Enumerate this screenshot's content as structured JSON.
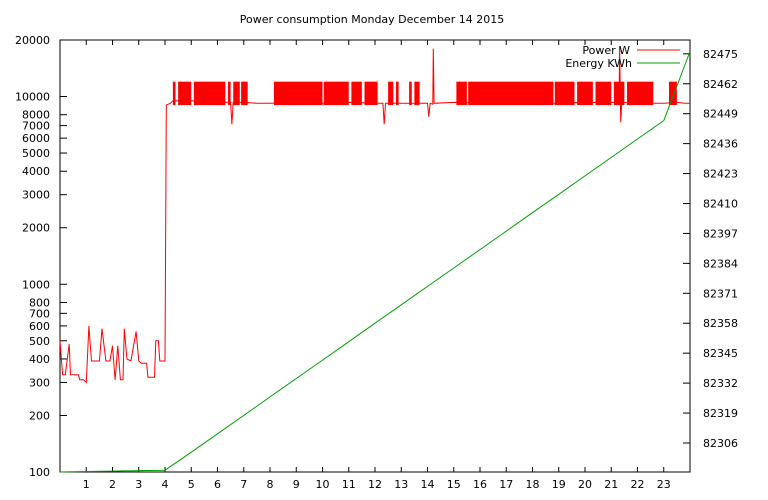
{
  "chart_data": {
    "type": "line",
    "title": "Power consumption Monday December 14 2015",
    "xlabel": "",
    "ylabel": "",
    "y2label": "",
    "grid": false,
    "legend_position": "top-right",
    "x_ticks": [
      "1",
      "2",
      "3",
      "4",
      "5",
      "6",
      "7",
      "8",
      "9",
      "10",
      "11",
      "12",
      "13",
      "14",
      "15",
      "16",
      "17",
      "18",
      "19",
      "20",
      "21",
      "22",
      "23"
    ],
    "xlim": [
      0,
      24
    ],
    "y_scale": "log",
    "ylim": [
      100,
      20000
    ],
    "y_ticks": [
      {
        "value": 100,
        "label": "100"
      },
      {
        "value": 200,
        "label": "200"
      },
      {
        "value": 300,
        "label": "300"
      },
      {
        "value": 400,
        "label": "400"
      },
      {
        "value": 500,
        "label": "500"
      },
      {
        "value": 600,
        "label": "600"
      },
      {
        "value": 700,
        "label": "700"
      },
      {
        "value": 800,
        "label": "800"
      },
      {
        "value": 1000,
        "label": "1000"
      },
      {
        "value": 2000,
        "label": "2000"
      },
      {
        "value": 3000,
        "label": "3000"
      },
      {
        "value": 4000,
        "label": "4000"
      },
      {
        "value": 5000,
        "label": "5000"
      },
      {
        "value": 6000,
        "label": "6000"
      },
      {
        "value": 7000,
        "label": "7000"
      },
      {
        "value": 8000,
        "label": "8000"
      },
      {
        "value": 10000,
        "label": "10000"
      },
      {
        "value": 20000,
        "label": "20000"
      }
    ],
    "y2lim": [
      82293.4,
      82481
    ],
    "y2_ticks": [
      "82306",
      "82319",
      "82332",
      "82345",
      "82358",
      "82371",
      "82384",
      "82397",
      "82410",
      "82423",
      "82436",
      "82449",
      "82462",
      "82475"
    ],
    "series": [
      {
        "name": "Power W",
        "axis": "left",
        "color": "#ff0000",
        "points": [
          [
            0.0,
            500
          ],
          [
            0.1,
            330
          ],
          [
            0.2,
            330
          ],
          [
            0.35,
            480
          ],
          [
            0.4,
            330
          ],
          [
            0.7,
            330
          ],
          [
            0.75,
            310
          ],
          [
            0.9,
            310
          ],
          [
            1.0,
            300
          ],
          [
            1.1,
            600
          ],
          [
            1.2,
            390
          ],
          [
            1.5,
            390
          ],
          [
            1.6,
            580
          ],
          [
            1.75,
            390
          ],
          [
            1.9,
            390
          ],
          [
            2.0,
            470
          ],
          [
            2.1,
            310
          ],
          [
            2.2,
            470
          ],
          [
            2.3,
            310
          ],
          [
            2.4,
            310
          ],
          [
            2.45,
            580
          ],
          [
            2.55,
            400
          ],
          [
            2.7,
            390
          ],
          [
            2.9,
            560
          ],
          [
            3.0,
            390
          ],
          [
            3.1,
            380
          ],
          [
            3.3,
            380
          ],
          [
            3.35,
            320
          ],
          [
            3.6,
            320
          ],
          [
            3.65,
            500
          ],
          [
            3.75,
            500
          ],
          [
            3.8,
            390
          ],
          [
            4.0,
            390
          ],
          [
            4.05,
            9000
          ],
          [
            4.2,
            9200
          ],
          [
            4.3,
            9500
          ],
          [
            5.0,
            9500
          ],
          [
            5.5,
            9400
          ],
          [
            6.0,
            9300
          ],
          [
            6.5,
            9300
          ],
          [
            6.55,
            7100
          ],
          [
            6.6,
            9300
          ],
          [
            7.0,
            9300
          ],
          [
            7.5,
            9200
          ],
          [
            8.0,
            9200
          ],
          [
            9.0,
            9300
          ],
          [
            10.0,
            9200
          ],
          [
            11.0,
            9300
          ],
          [
            12.0,
            9200
          ],
          [
            12.3,
            9200
          ],
          [
            12.35,
            7100
          ],
          [
            12.4,
            9200
          ],
          [
            13.0,
            9200
          ],
          [
            14.0,
            9200
          ],
          [
            14.05,
            7800
          ],
          [
            14.1,
            9200
          ],
          [
            14.2,
            9100
          ],
          [
            14.22,
            18000
          ],
          [
            14.25,
            9200
          ],
          [
            15.0,
            9300
          ],
          [
            16.0,
            9200
          ],
          [
            17.0,
            9200
          ],
          [
            18.0,
            9200
          ],
          [
            19.0,
            9200
          ],
          [
            20.0,
            9300
          ],
          [
            21.0,
            9300
          ],
          [
            21.3,
            9300
          ],
          [
            21.32,
            18500
          ],
          [
            21.36,
            7300
          ],
          [
            21.4,
            9300
          ],
          [
            22.0,
            9200
          ],
          [
            22.7,
            9200
          ],
          [
            23.0,
            9200
          ],
          [
            23.5,
            9300
          ],
          [
            23.8,
            9200
          ],
          [
            24.0,
            9200
          ]
        ],
        "fluctuation_bands": [
          [
            4.3,
            4.4
          ],
          [
            4.5,
            5.0
          ],
          [
            5.1,
            6.3
          ],
          [
            6.4,
            6.5
          ],
          [
            6.6,
            6.85
          ],
          [
            6.9,
            7.15
          ],
          [
            8.15,
            10.0
          ],
          [
            10.05,
            11.0
          ],
          [
            11.1,
            11.5
          ],
          [
            11.6,
            12.1
          ],
          [
            12.5,
            12.7
          ],
          [
            12.8,
            12.9
          ],
          [
            13.3,
            13.4
          ],
          [
            13.5,
            13.7
          ],
          [
            15.1,
            15.5
          ],
          [
            15.55,
            18.8
          ],
          [
            18.85,
            19.6
          ],
          [
            19.7,
            20.3
          ],
          [
            20.4,
            21.0
          ],
          [
            21.1,
            21.5
          ],
          [
            21.6,
            22.6
          ],
          [
            23.2,
            23.5
          ]
        ],
        "band_range": [
          9000,
          12000
        ]
      },
      {
        "name": "Energy KWh",
        "axis": "right",
        "color": "#00a000",
        "points": [
          [
            0.0,
            82293.4
          ],
          [
            1.0,
            82293.6
          ],
          [
            2.0,
            82293.8
          ],
          [
            3.0,
            82294.0
          ],
          [
            4.0,
            82294.2
          ],
          [
            5.0,
            82302.0
          ],
          [
            6.0,
            82310.0
          ],
          [
            7.0,
            82318.0
          ],
          [
            8.0,
            82326.0
          ],
          [
            9.0,
            82334.0
          ],
          [
            10.0,
            82342.0
          ],
          [
            11.0,
            82350.0
          ],
          [
            12.0,
            82358.0
          ],
          [
            13.0,
            82366.0
          ],
          [
            14.0,
            82374.0
          ],
          [
            15.0,
            82382.0
          ],
          [
            16.0,
            82390.0
          ],
          [
            17.0,
            82398.0
          ],
          [
            18.0,
            82406.0
          ],
          [
            19.0,
            82414.0
          ],
          [
            20.0,
            82422.0
          ],
          [
            21.0,
            82430.0
          ],
          [
            22.0,
            82438.0
          ],
          [
            23.0,
            82446.0
          ],
          [
            24.0,
            82476.0
          ]
        ]
      }
    ]
  }
}
